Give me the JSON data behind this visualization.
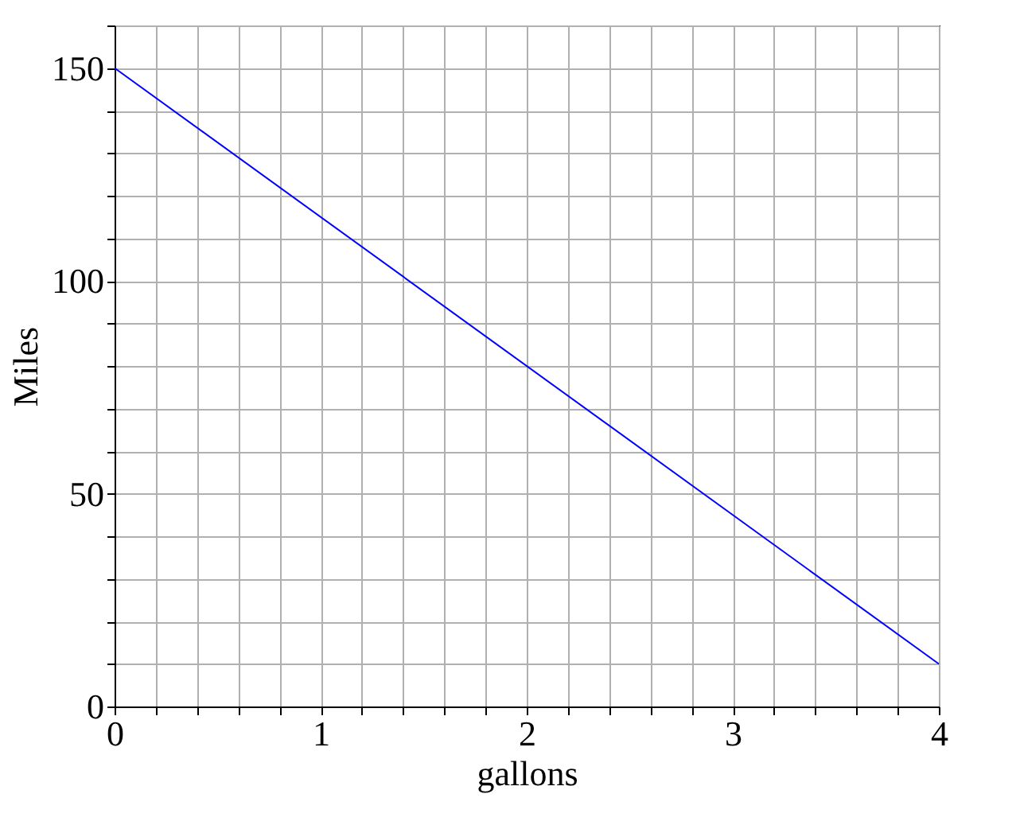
{
  "chart_data": {
    "type": "line",
    "xlabel": "gallons",
    "ylabel": "Miles",
    "x": [
      0,
      4
    ],
    "series": [
      {
        "color": "#0000ff",
        "values": [
          150,
          10
        ]
      }
    ],
    "xlim": [
      0,
      4
    ],
    "ylim": [
      0,
      160
    ],
    "xticks": [
      0,
      {
        "value": 0.2,
        "label": null
      },
      {
        "value": 0.4,
        "label": null
      },
      {
        "value": 0.6,
        "label": null
      },
      {
        "value": 0.8,
        "label": null
      },
      1,
      {
        "value": 1.2,
        "label": null
      },
      {
        "value": 1.4,
        "label": null
      },
      {
        "value": 1.6,
        "label": null
      },
      {
        "value": 1.8,
        "label": null
      },
      2,
      {
        "value": 2.2,
        "label": null
      },
      {
        "value": 2.4,
        "label": null
      },
      {
        "value": 2.6,
        "label": null
      },
      {
        "value": 2.8,
        "label": null
      },
      3,
      {
        "value": 3.2,
        "label": null
      },
      {
        "value": 3.4,
        "label": null
      },
      {
        "value": 3.6,
        "label": null
      },
      {
        "value": 3.8,
        "label": null
      },
      4
    ],
    "yticks": [
      0,
      {
        "value": 10,
        "label": null
      },
      {
        "value": 20,
        "label": null
      },
      {
        "value": 30,
        "label": null
      },
      {
        "value": 40,
        "label": null
      },
      50,
      {
        "value": 60,
        "label": null
      },
      {
        "value": 70,
        "label": null
      },
      {
        "value": 80,
        "label": null
      },
      {
        "value": 90,
        "label": null
      },
      100,
      {
        "value": 110,
        "label": null
      },
      {
        "value": 120,
        "label": null
      },
      {
        "value": 130,
        "label": null
      },
      {
        "value": 140,
        "label": null
      },
      150,
      {
        "value": 160,
        "label": null
      }
    ],
    "grid": true,
    "marker": "none",
    "line_style": "solid"
  }
}
